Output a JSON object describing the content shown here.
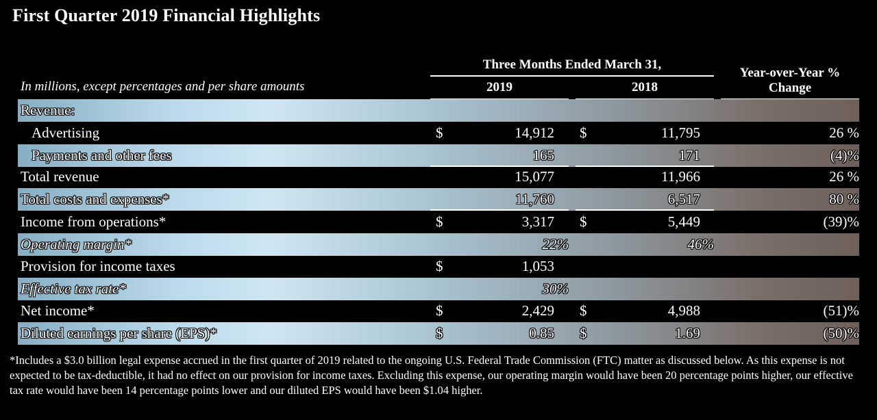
{
  "title": "First Quarter 2019 Financial Highlights",
  "subtitle": "In millions, except percentages and per share amounts",
  "header": {
    "period": "Three Months Ended March 31,",
    "year1": "2019",
    "year2": "2018",
    "yoy": "Year-over-Year % Change"
  },
  "rows": [
    {
      "label": "Revenue:",
      "cur1": "",
      "v2019": "",
      "cur2": "",
      "v2018": "",
      "yoy": ""
    },
    {
      "label": "Advertising",
      "cur1": "$",
      "v2019": "14,912",
      "cur2": "$",
      "v2018": "11,795",
      "yoy": "26 %"
    },
    {
      "label": "Payments and other fees",
      "cur1": "",
      "v2019": "165",
      "cur2": "",
      "v2018": "171",
      "yoy": "(4)%"
    },
    {
      "label": "Total revenue",
      "cur1": "",
      "v2019": "15,077",
      "cur2": "",
      "v2018": "11,966",
      "yoy": "26 %"
    },
    {
      "label": "Total costs and expenses*",
      "cur1": "",
      "v2019": "11,760",
      "cur2": "",
      "v2018": "6,517",
      "yoy": "80 %"
    },
    {
      "label": "Income from operations*",
      "cur1": "$",
      "v2019": "3,317",
      "cur2": "$",
      "v2018": "5,449",
      "yoy": "(39)%"
    },
    {
      "label": "Operating margin*",
      "cur1": "",
      "v2019": "22%",
      "cur2": "",
      "v2018": "46%",
      "yoy": ""
    },
    {
      "label": "Provision for income taxes",
      "cur1": "$",
      "v2019": "1,053",
      "cur2": "",
      "v2018": "",
      "yoy": ""
    },
    {
      "label": "Effective tax rate*",
      "cur1": "",
      "v2019": "30%",
      "cur2": "",
      "v2018": "",
      "yoy": ""
    },
    {
      "label": "Net income*",
      "cur1": "$",
      "v2019": "2,429",
      "cur2": "$",
      "v2018": "4,988",
      "yoy": "(51)%"
    },
    {
      "label": "Diluted earnings per share (EPS)*",
      "cur1": "$",
      "v2019": "0.85",
      "cur2": "$",
      "v2018": "1.69",
      "yoy": "(50)%"
    }
  ],
  "footnote": "*Includes a $3.0 billion legal expense accrued in the first quarter of 2019 related to the ongoing U.S. Federal Trade Commission (FTC) matter as discussed below. As this expense is not expected to be tax-deductible, it had no effect on our provision for income taxes. Excluding this expense, our operating margin would have been 20 percentage points higher, our effective tax rate would have been 14 percentage points lower and our diluted EPS would have been $1.04 higher."
}
